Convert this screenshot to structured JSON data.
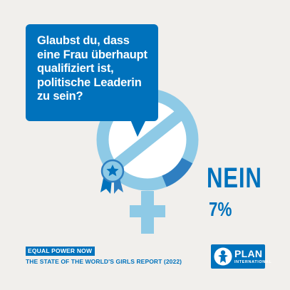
{
  "question": {
    "lines": [
      "Glaubst du, dass",
      "eine Frau überhaupt",
      "qualifiziert ist,",
      "politische Leaderin",
      "zu sein?"
    ]
  },
  "answer": {
    "word": "NEIN",
    "percent": "7%",
    "share": 0.07
  },
  "footer": {
    "campaign": "EQUAL POWER NOW",
    "report": "THE STATE OF THE WORLD'S GIRLS REPORT (2022)"
  },
  "logo": {
    "name": "PLAN",
    "sub": "INTERNATIONAL"
  },
  "icons": {
    "symbol": "female-symbol-icon",
    "badge": "award-ribbon-icon",
    "logo_mark": "plan-person-icon"
  },
  "colors": {
    "background": "#f1efec",
    "brand_blue": "#0072bc",
    "light_blue": "#8ecae6",
    "mid_blue": "#2f7fc1",
    "white": "#ffffff"
  }
}
